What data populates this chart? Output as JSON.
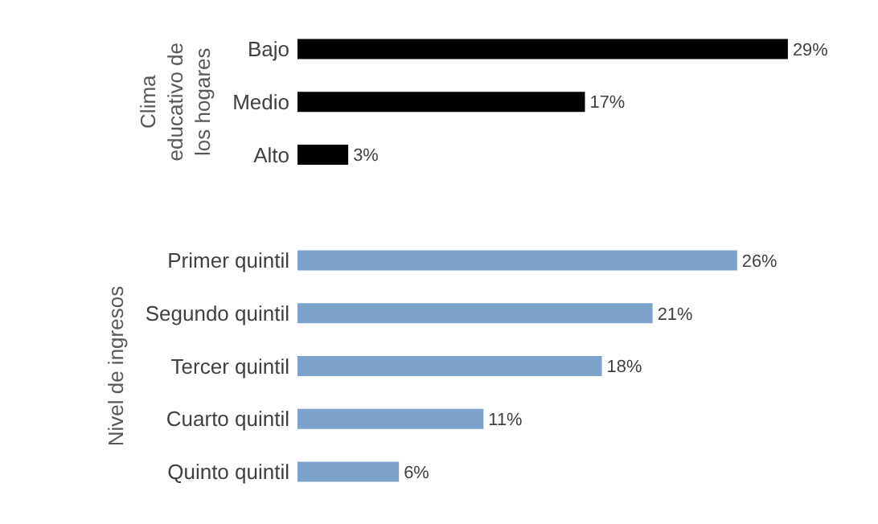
{
  "chart_data": [
    {
      "type": "bar",
      "orientation": "horizontal",
      "ylabel": "Clima educativo de los hogares",
      "categories": [
        "Bajo",
        "Medio",
        "Alto"
      ],
      "values": [
        29,
        17,
        3
      ],
      "value_labels": [
        "29%",
        "17%",
        "3%"
      ],
      "color": "#000000",
      "tick_labels": "y"
    },
    {
      "type": "bar",
      "orientation": "horizontal",
      "ylabel": "Nivel de ingresos",
      "categories": [
        "Primer quintil",
        "Segundo quintil",
        "Tercer quintil",
        "Cuarto quintil",
        "Quinto quintil"
      ],
      "values": [
        26,
        21,
        18,
        11,
        6
      ],
      "value_labels": [
        "26%",
        "21%",
        "18%",
        "11%",
        "6%"
      ],
      "color": "#7ba3cc",
      "tick_labels": "y"
    }
  ]
}
